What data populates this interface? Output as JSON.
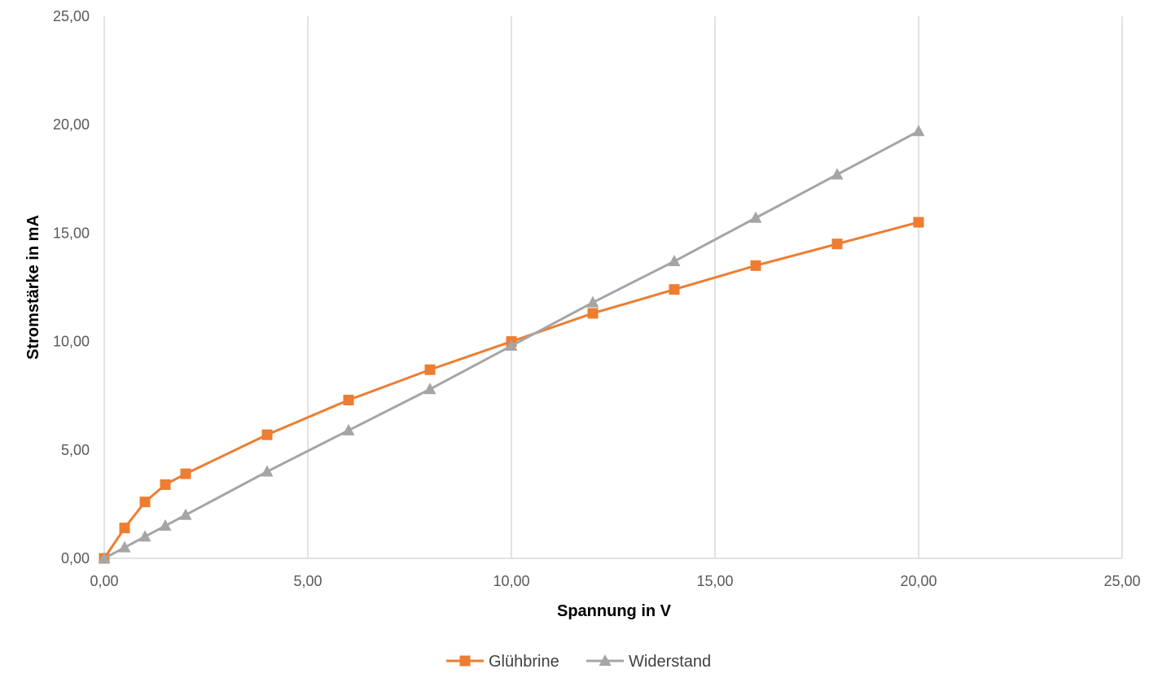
{
  "chart_data": {
    "type": "line",
    "xlabel": "Spannung in V",
    "ylabel": "Stromstärke in mA",
    "xlim": [
      0,
      25
    ],
    "ylim": [
      0,
      25
    ],
    "x_ticks": [
      "0,00",
      "5,00",
      "10,00",
      "15,00",
      "20,00",
      "25,00"
    ],
    "y_ticks": [
      "0,00",
      "5,00",
      "10,00",
      "15,00",
      "20,00",
      "25,00"
    ],
    "grid": "vertical",
    "legend_position": "bottom",
    "series": [
      {
        "name": "Glühbrine",
        "color": "#ED7D31",
        "marker": "square",
        "x": [
          0,
          0.5,
          1,
          1.5,
          2,
          4,
          6,
          8,
          10,
          12,
          14,
          16,
          18,
          20
        ],
        "y": [
          0,
          1.4,
          2.6,
          3.4,
          3.9,
          5.7,
          7.3,
          8.7,
          10.0,
          11.3,
          12.4,
          13.5,
          14.5,
          15.5
        ]
      },
      {
        "name": "Widerstand",
        "color": "#A5A5A5",
        "marker": "triangle",
        "x": [
          0,
          0.5,
          1,
          1.5,
          2,
          4,
          6,
          8,
          10,
          12,
          14,
          16,
          18,
          20
        ],
        "y": [
          0,
          0.5,
          1.0,
          1.5,
          2.0,
          4.0,
          5.9,
          7.8,
          9.8,
          11.8,
          13.7,
          15.7,
          17.7,
          19.7
        ]
      }
    ]
  }
}
